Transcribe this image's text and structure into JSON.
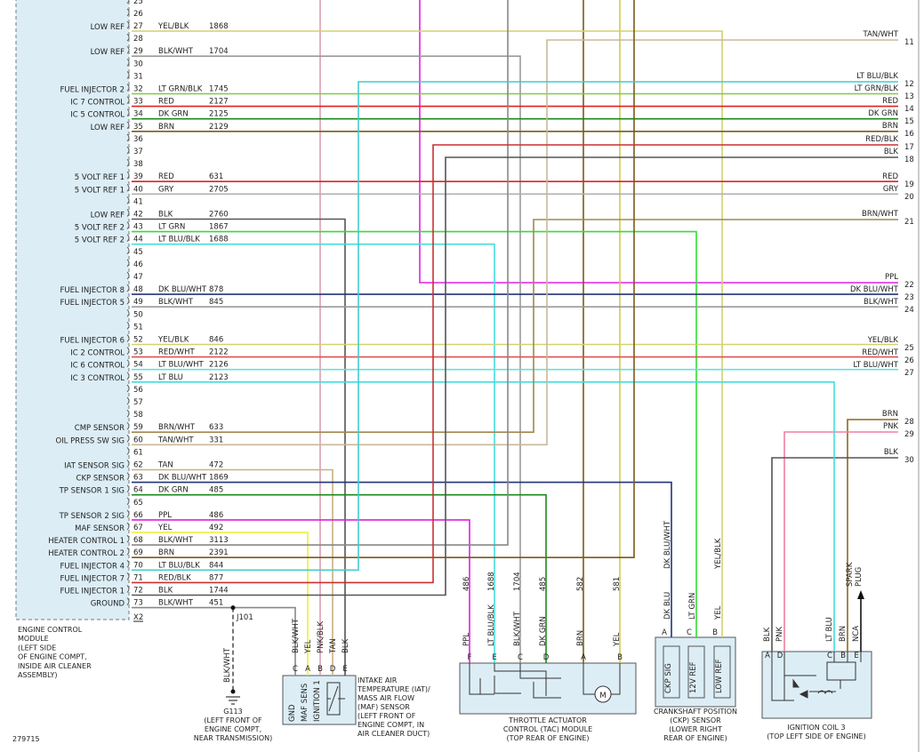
{
  "ecm": {
    "pins": [
      {
        "pin": 25
      },
      {
        "pin": 26
      },
      {
        "pin": 27,
        "label": "LOW REF",
        "color": "YEL/BLK",
        "circuit": 1868
      },
      {
        "pin": 28
      },
      {
        "pin": 29,
        "label": "LOW REF",
        "color": "BLK/WHT",
        "circuit": 1704
      },
      {
        "pin": 30
      },
      {
        "pin": 31
      },
      {
        "pin": 32,
        "label": "FUEL INJECTOR 2",
        "color": "LT GRN/BLK",
        "circuit": 1745
      },
      {
        "pin": 33,
        "label": "IC 7 CONTROL",
        "color": "RED",
        "circuit": 2127
      },
      {
        "pin": 34,
        "label": "IC 5 CONTROL",
        "color": "DK GRN",
        "circuit": 2125
      },
      {
        "pin": 35,
        "label": "LOW REF",
        "color": "BRN",
        "circuit": 2129
      },
      {
        "pin": 36
      },
      {
        "pin": 37
      },
      {
        "pin": 38
      },
      {
        "pin": 39,
        "label": "5 VOLT REF 1",
        "color": "RED",
        "circuit": 631
      },
      {
        "pin": 40,
        "label": "5 VOLT REF 1",
        "color": "GRY",
        "circuit": 2705
      },
      {
        "pin": 41
      },
      {
        "pin": 42,
        "label": "LOW REF",
        "color": "BLK",
        "circuit": 2760
      },
      {
        "pin": 43,
        "label": "5 VOLT REF 2",
        "color": "LT GRN",
        "circuit": 1867
      },
      {
        "pin": 44,
        "label": "5 VOLT REF 2",
        "color": "LT BLU/BLK",
        "circuit": 1688
      },
      {
        "pin": 45
      },
      {
        "pin": 46
      },
      {
        "pin": 47
      },
      {
        "pin": 48,
        "label": "FUEL INJECTOR 8",
        "color": "DK BLU/WHT",
        "circuit": 878
      },
      {
        "pin": 49,
        "label": "FUEL INJECTOR 5",
        "color": "BLK/WHT",
        "circuit": 845
      },
      {
        "pin": 50
      },
      {
        "pin": 51
      },
      {
        "pin": 52,
        "label": "FUEL INJECTOR 6",
        "color": "YEL/BLK",
        "circuit": 846
      },
      {
        "pin": 53,
        "label": "IC 2 CONTROL",
        "color": "RED/WHT",
        "circuit": 2122
      },
      {
        "pin": 54,
        "label": "IC 6 CONTROL",
        "color": "LT BLU/WHT",
        "circuit": 2126
      },
      {
        "pin": 55,
        "label": "IC 3 CONTROL",
        "color": "LT BLU",
        "circuit": 2123
      },
      {
        "pin": 56
      },
      {
        "pin": 57
      },
      {
        "pin": 58
      },
      {
        "pin": 59,
        "label": "CMP SENSOR",
        "color": "BRN/WHT",
        "circuit": 633
      },
      {
        "pin": 60,
        "label": "OIL PRESS SW SIG",
        "color": "TAN/WHT",
        "circuit": 331
      },
      {
        "pin": 61
      },
      {
        "pin": 62,
        "label": "IAT SENSOR SIG",
        "color": "TAN",
        "circuit": 472
      },
      {
        "pin": 63,
        "label": "CKP SENSOR",
        "color": "DK BLU/WHT",
        "circuit": 1869
      },
      {
        "pin": 64,
        "label": "TP SENSOR 1 SIG",
        "color": "DK GRN",
        "circuit": 485
      },
      {
        "pin": 65
      },
      {
        "pin": 66,
        "label": "TP SENSOR 2 SIG",
        "color": "PPL",
        "circuit": 486
      },
      {
        "pin": 67,
        "label": "MAF SENSOR",
        "color": "YEL",
        "circuit": 492
      },
      {
        "pin": 68,
        "label": "HEATER CONTROL 1",
        "color": "BLK/WHT",
        "circuit": 3113
      },
      {
        "pin": 69,
        "label": "HEATER CONTROL 2",
        "color": "BRN",
        "circuit": 2391
      },
      {
        "pin": 70,
        "label": "FUEL INJECTOR 4",
        "color": "LT BLU/BLK",
        "circuit": 844
      },
      {
        "pin": 71,
        "label": "FUEL INJECTOR 7",
        "color": "RED/BLK",
        "circuit": 877
      },
      {
        "pin": 72,
        "label": "FUEL INJECTOR 1",
        "color": "BLK",
        "circuit": 1744
      },
      {
        "pin": 73,
        "label": "GROUND",
        "color": "BLK/WHT",
        "circuit": 451
      }
    ],
    "connector": "X2",
    "caption": [
      "ENGINE CONTROL",
      "MODULE",
      "(LEFT SIDE",
      "OF ENGINE COMPT,",
      "INSIDE AIR CLEANER",
      "ASSEMBLY)"
    ]
  },
  "right_wires": [
    {
      "color": "TAN/WHT",
      "number": 11
    },
    {
      "color": "LT BLU/BLK",
      "number": 12
    },
    {
      "color": "LT GRN/BLK",
      "number": 13
    },
    {
      "color": "RED",
      "number": 14
    },
    {
      "color": "DK GRN",
      "number": 15
    },
    {
      "color": "BRN",
      "number": 16
    },
    {
      "color": "RED/BLK",
      "number": 17
    },
    {
      "color": "BLK",
      "number": 18
    },
    {
      "color": "RED",
      "number": 19
    },
    {
      "color": "GRY",
      "number": 20
    },
    {
      "color": "BRN/WHT",
      "number": 21
    },
    {
      "color": "PPL",
      "number": 22
    },
    {
      "color": "DK BLU/WHT",
      "number": 23
    },
    {
      "color": "BLK/WHT",
      "number": 24
    },
    {
      "color": "YEL/BLK",
      "number": 25
    },
    {
      "color": "RED/WHT",
      "number": 26
    },
    {
      "color": "LT BLU/WHT",
      "number": 27
    },
    {
      "color": "BRN",
      "number": 28
    },
    {
      "color": "PNK",
      "number": 29
    },
    {
      "color": "BLK",
      "number": 30
    }
  ],
  "ground": {
    "connector": "J101",
    "wire": "BLK/WHT",
    "name": "G113",
    "caption": [
      "(LEFT FRONT OF",
      "ENGINE COMPT,",
      "NEAR TRANSMISSION)"
    ]
  },
  "iat_maf_sensor": {
    "pins": [
      {
        "letter": "C",
        "wire": "BLK/WHT",
        "function": "GND"
      },
      {
        "letter": "A",
        "wire": "YEL",
        "function": "MAF SENS"
      },
      {
        "letter": "B",
        "wire": "PNK/BLK",
        "function": "IGNITION 1"
      },
      {
        "letter": "D",
        "wire": "TAN"
      },
      {
        "letter": "E",
        "wire": "BLK"
      }
    ],
    "caption": [
      "INTAKE AIR",
      "TEMPERATURE (IAT)/",
      "MASS AIR FLOW",
      "(MAF) SENSOR",
      "(LEFT FRONT OF",
      "ENGINE COMPT, IN",
      "AIR CLEANER DUCT)"
    ]
  },
  "tac_module": {
    "pins": [
      {
        "letter": "F",
        "wire": "PPL",
        "circuit": 486
      },
      {
        "letter": "E",
        "wire": "LT BLU/BLK",
        "circuit": 1688
      },
      {
        "letter": "C",
        "wire": "BLK/WHT",
        "circuit": 1704
      },
      {
        "letter": "D",
        "wire": "DK GRN",
        "circuit": 485
      },
      {
        "letter": "A",
        "wire": "BRN",
        "circuit": 582
      },
      {
        "letter": "B",
        "wire": "YEL",
        "circuit": 581
      }
    ],
    "motor": "M",
    "caption": [
      "THROTTLE ACTUATOR",
      "CONTROL (TAC) MODULE",
      "(TOP REAR OF ENGINE)"
    ]
  },
  "ckp_sensor": {
    "pins": [
      {
        "letter": "A",
        "wire": "DK BLU",
        "upper_wire": "DK BLU/WHT",
        "function": "CKP SIG"
      },
      {
        "letter": "C",
        "wire": "LT GRN",
        "function": "12V REF"
      },
      {
        "letter": "B",
        "wire": "YEL",
        "upper_wire": "YEL/BLK",
        "function": "LOW REF"
      }
    ],
    "caption": [
      "CRANKSHAFT POSITION",
      "(CKP) SENSOR",
      "(LOWER RIGHT",
      "REAR OF ENGINE)"
    ]
  },
  "ignition_coil": {
    "pins": [
      {
        "letter": "A",
        "wire": "BLK"
      },
      {
        "letter": "D",
        "wire": "PNK"
      },
      {
        "letter": "C",
        "wire": "LT BLU"
      },
      {
        "letter": "B",
        "wire": "BRN"
      },
      {
        "letter": "E",
        "wire": "NCA"
      }
    ],
    "spark_plug": [
      "SPARK",
      "PLUG"
    ],
    "caption": [
      "IGNITION COIL 3",
      "(TOP LEFT SIDE OF ENGINE)"
    ]
  },
  "figure_id": "279715"
}
